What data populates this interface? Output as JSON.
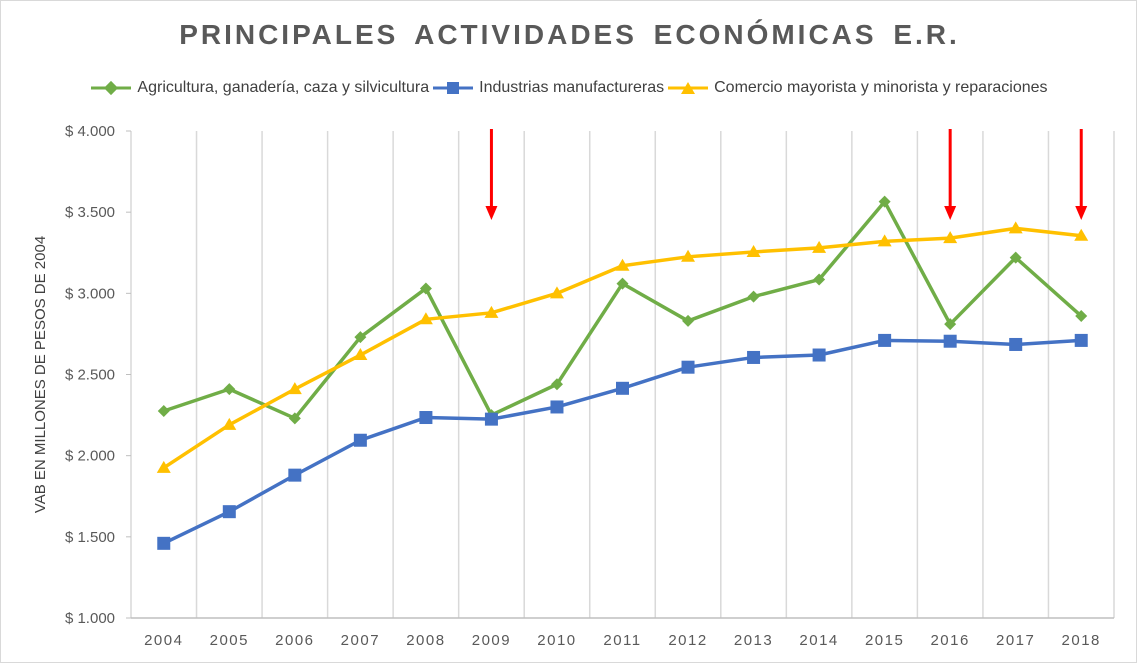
{
  "colors": {
    "agri": "#70ad47",
    "ind": "#4472c4",
    "com": "#ffc000",
    "arrow": "#ff0000",
    "grid": "#d9d9d9",
    "axis": "#bfbfbf"
  },
  "chart_data": {
    "type": "line",
    "title": "PRINCIPALES  ACTIVIDADES  ECONÓMICAS  E.R.",
    "ylabel": "VAB EN MILLONES DE PESOS DE 2004",
    "xlabel": "",
    "ylim": [
      1000,
      4000
    ],
    "yticks": [
      1000,
      1500,
      2000,
      2500,
      3000,
      3500,
      4000
    ],
    "ytick_labels": [
      "$ 1.000",
      "$ 1.500",
      "$ 2.000",
      "$ 2.500",
      "$ 3.000",
      "$ 3.500",
      "$ 4.000"
    ],
    "categories": [
      "2004",
      "2005",
      "2006",
      "2007",
      "2008",
      "2009",
      "2010",
      "2011",
      "2012",
      "2013",
      "2014",
      "2015",
      "2016",
      "2017",
      "2018"
    ],
    "grid": "vertical",
    "legend_position": "top",
    "series": [
      {
        "key": "agri",
        "name": "Agricultura, ganadería, caza y silvicultura",
        "marker": "diamond",
        "values": [
          2275,
          2410,
          2230,
          2730,
          3030,
          2250,
          2440,
          3060,
          2830,
          2980,
          3085,
          3565,
          2810,
          3220,
          2860
        ]
      },
      {
        "key": "ind",
        "name": "Industrias manufactureras",
        "marker": "square",
        "values": [
          1460,
          1655,
          1880,
          2095,
          2235,
          2225,
          2300,
          2415,
          2545,
          2605,
          2620,
          2710,
          2705,
          2685,
          2710
        ]
      },
      {
        "key": "com",
        "name": "Comercio mayorista y minorista y reparaciones",
        "marker": "triangle",
        "values": [
          1925,
          2190,
          2410,
          2620,
          2840,
          2880,
          3000,
          3170,
          3225,
          3255,
          3280,
          3320,
          3340,
          3400,
          3355
        ]
      }
    ],
    "annotations": [
      {
        "type": "arrow-down",
        "category": "2009"
      },
      {
        "type": "arrow-down",
        "category": "2016"
      },
      {
        "type": "arrow-down",
        "category": "2018"
      }
    ]
  }
}
